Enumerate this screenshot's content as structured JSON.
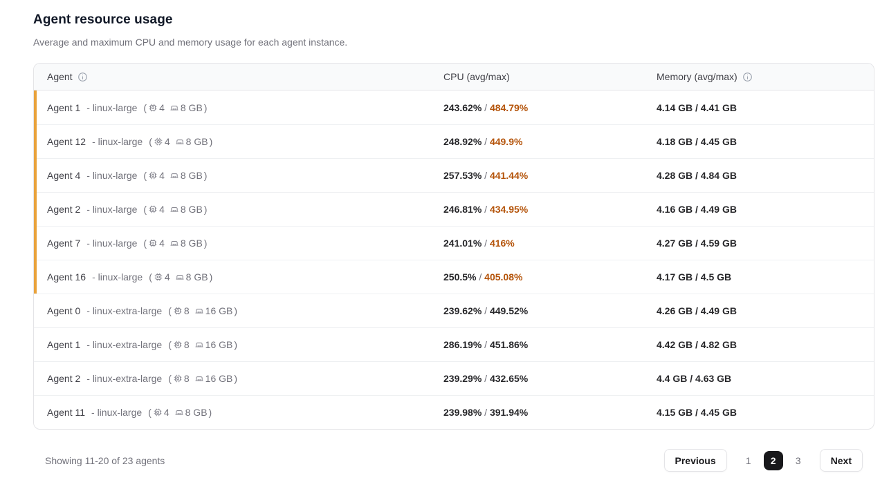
{
  "page": {
    "title": "Agent resource usage",
    "subtitle": "Average and maximum CPU and memory usage for each agent instance."
  },
  "table": {
    "columns": {
      "agent": "Agent",
      "cpu": "CPU (avg/max)",
      "memory": "Memory (avg/max)"
    },
    "rows": [
      {
        "agent": "Agent 1",
        "type_label": "- linux-large",
        "cores": "4",
        "ram": "8 GB",
        "cpu_avg": "243.62%",
        "cpu_max": "484.79%",
        "memory": "4.14 GB / 4.41 GB",
        "warn": true
      },
      {
        "agent": "Agent 12",
        "type_label": "- linux-large",
        "cores": "4",
        "ram": "8 GB",
        "cpu_avg": "248.92%",
        "cpu_max": "449.9%",
        "memory": "4.18 GB / 4.45 GB",
        "warn": true
      },
      {
        "agent": "Agent 4",
        "type_label": "- linux-large",
        "cores": "4",
        "ram": "8 GB",
        "cpu_avg": "257.53%",
        "cpu_max": "441.44%",
        "memory": "4.28 GB / 4.84 GB",
        "warn": true
      },
      {
        "agent": "Agent 2",
        "type_label": "- linux-large",
        "cores": "4",
        "ram": "8 GB",
        "cpu_avg": "246.81%",
        "cpu_max": "434.95%",
        "memory": "4.16 GB / 4.49 GB",
        "warn": true
      },
      {
        "agent": "Agent 7",
        "type_label": "- linux-large",
        "cores": "4",
        "ram": "8 GB",
        "cpu_avg": "241.01%",
        "cpu_max": "416%",
        "memory": "4.27 GB / 4.59 GB",
        "warn": true
      },
      {
        "agent": "Agent 16",
        "type_label": "- linux-large",
        "cores": "4",
        "ram": "8 GB",
        "cpu_avg": "250.5%",
        "cpu_max": "405.08%",
        "memory": "4.17 GB / 4.5 GB",
        "warn": true
      },
      {
        "agent": "Agent 0",
        "type_label": "- linux-extra-large",
        "cores": "8",
        "ram": "16 GB",
        "cpu_avg": "239.62%",
        "cpu_max": "449.52%",
        "memory": "4.26 GB / 4.49 GB",
        "warn": false
      },
      {
        "agent": "Agent 1",
        "type_label": "- linux-extra-large",
        "cores": "8",
        "ram": "16 GB",
        "cpu_avg": "286.19%",
        "cpu_max": "451.86%",
        "memory": "4.42 GB / 4.82 GB",
        "warn": false
      },
      {
        "agent": "Agent 2",
        "type_label": "- linux-extra-large",
        "cores": "8",
        "ram": "16 GB",
        "cpu_avg": "239.29%",
        "cpu_max": "432.65%",
        "memory": "4.4 GB / 4.63 GB",
        "warn": false
      },
      {
        "agent": "Agent 11",
        "type_label": "- linux-large",
        "cores": "4",
        "ram": "8 GB",
        "cpu_avg": "239.98%",
        "cpu_max": "391.94%",
        "memory": "4.15 GB / 4.45 GB",
        "warn": false
      }
    ]
  },
  "footer": {
    "summary": "Showing 11-20 of 23 agents",
    "previous_label": "Previous",
    "pages": [
      "1",
      "2",
      "3"
    ],
    "active_page": "2",
    "next_label": "Next"
  },
  "colors": {
    "warning_bar": "#E9A23B",
    "warning_text": "#B45309",
    "active_page_bg": "#18181b"
  }
}
